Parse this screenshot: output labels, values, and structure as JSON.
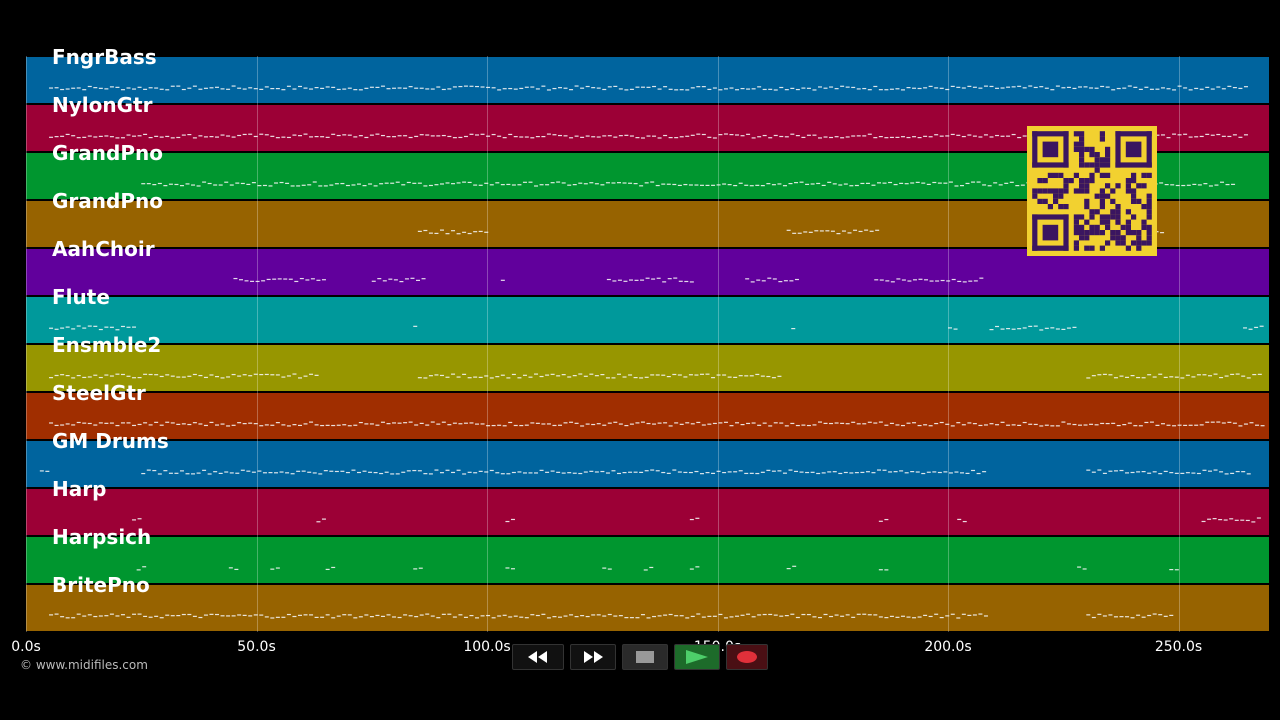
{
  "tracks": [
    {
      "name": "FngrBass",
      "color": "#00649e"
    },
    {
      "name": "NylonGtr",
      "color": "#9c0036"
    },
    {
      "name": "GrandPno",
      "color": "#00962f"
    },
    {
      "name": "GrandPno",
      "color": "#976300"
    },
    {
      "name": "AahChoir",
      "color": "#61009c"
    },
    {
      "name": "Flute",
      "color": "#00999b"
    },
    {
      "name": "Ensmble2",
      "color": "#979600"
    },
    {
      "name": "SteelGtr",
      "color": "#a02e00"
    },
    {
      "name": "GM Drums",
      "color": "#00649e"
    },
    {
      "name": "Harp",
      "color": "#9c0036"
    },
    {
      "name": "Harpsich",
      "color": "#00962f"
    },
    {
      "name": "BritePno",
      "color": "#976300"
    }
  ],
  "timeline": {
    "ticks": [
      "0.0s",
      "50.0s",
      "100.0s",
      "150.0s",
      "200.0s",
      "250.0s"
    ],
    "tick_values": [
      0,
      50,
      100,
      150,
      200,
      250
    ],
    "max_seconds": 270
  },
  "copyright": "© www.midifiles.com",
  "transport": {
    "rewind_icon": "rewind-icon",
    "fast_forward_icon": "fast-forward-icon",
    "stop_icon": "stop-icon",
    "play_icon": "play-icon",
    "record_icon": "record-icon"
  },
  "qr_icon": "qr-code-icon"
}
